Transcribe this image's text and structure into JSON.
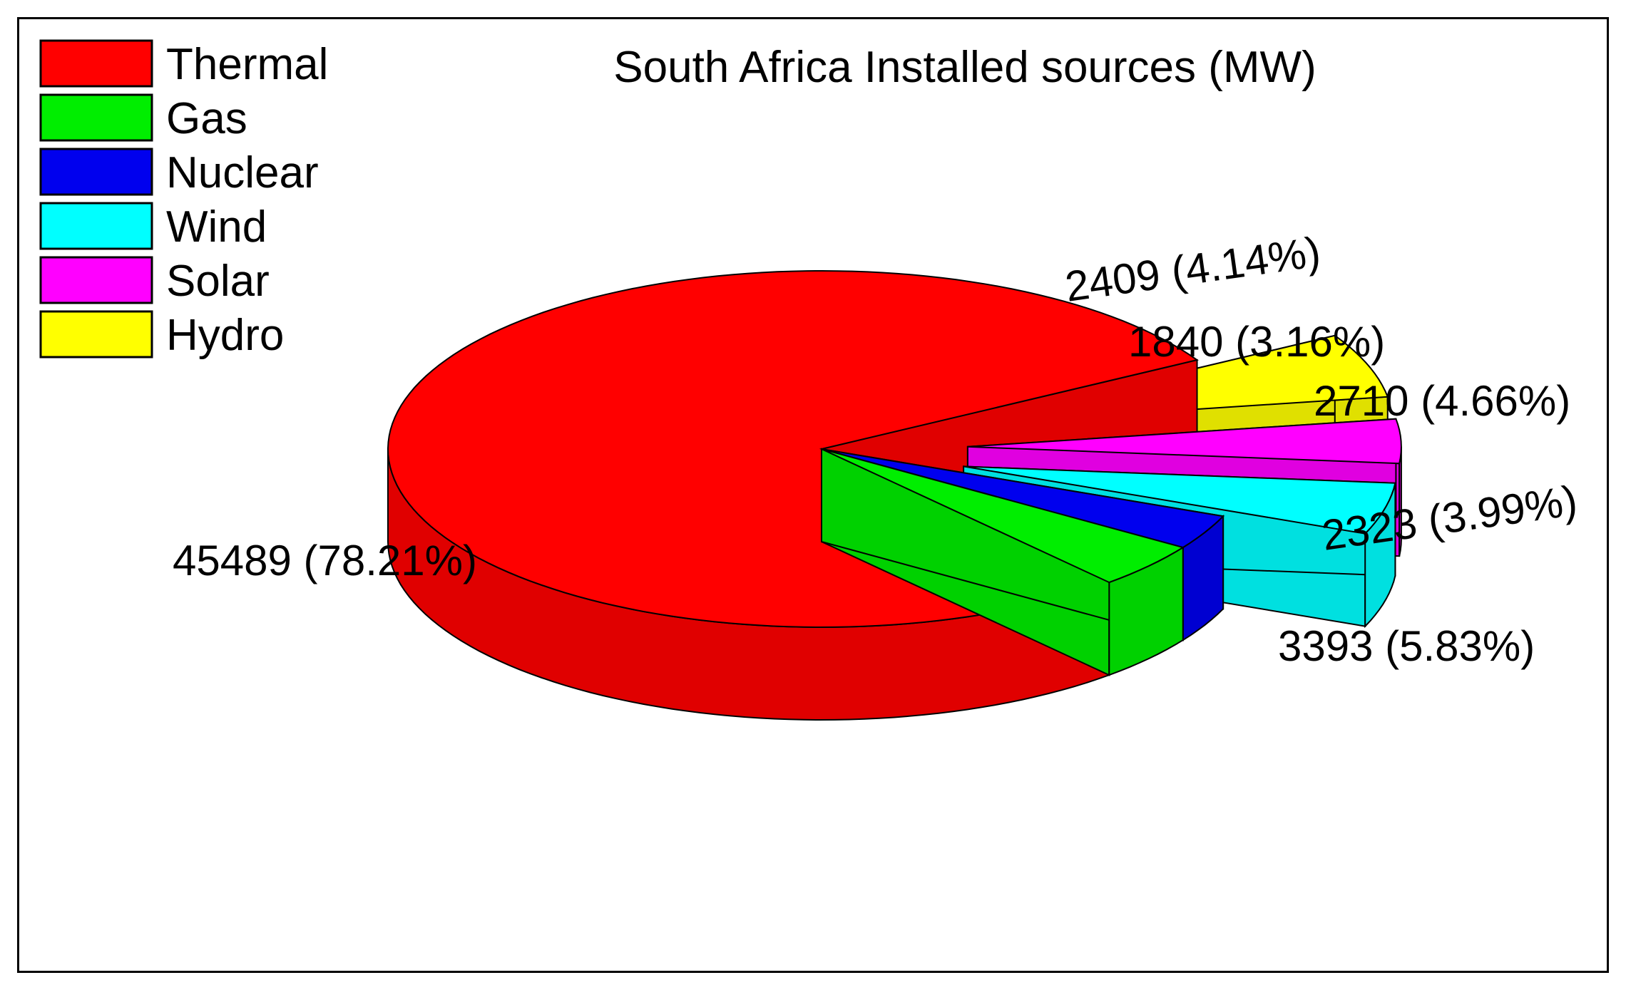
{
  "chart_data": {
    "type": "pie",
    "title": "South Africa Installed sources (MW)",
    "legend_position": "top-left",
    "style": "3d-exploded",
    "slices": [
      {
        "label": "Thermal",
        "value": 45489,
        "percent": 78.21,
        "color": "#ff0000",
        "data_label": "45489 (78.21%)",
        "exploded": false
      },
      {
        "label": "Gas",
        "value": 2409,
        "percent": 4.14,
        "color": "#00ee00",
        "data_label": "2409 (4.14%)",
        "exploded": false
      },
      {
        "label": "Nuclear",
        "value": 1840,
        "percent": 3.16,
        "color": "#0000ee",
        "data_label": "1840 (3.16%)",
        "exploded": false
      },
      {
        "label": "Wind",
        "value": 2710,
        "percent": 4.66,
        "color": "#00ffff",
        "data_label": "2710 (4.66%)",
        "exploded": true
      },
      {
        "label": "Solar",
        "value": 2323,
        "percent": 3.99,
        "color": "#ff00ff",
        "data_label": "2323 (3.99%)",
        "exploded": true
      },
      {
        "label": "Hydro",
        "value": 3393,
        "percent": 5.83,
        "color": "#ffff00",
        "data_label": "3393 (5.83%)",
        "exploded": true
      }
    ]
  }
}
